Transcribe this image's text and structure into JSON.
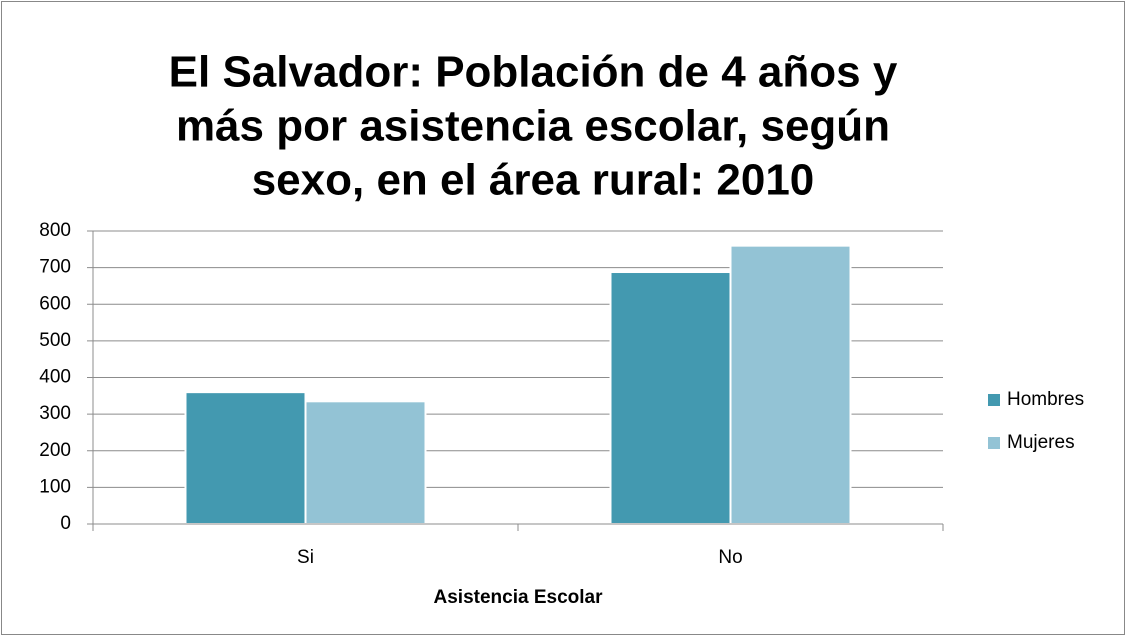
{
  "chart_data": {
    "type": "bar",
    "title": [
      "El Salvador: Población de 4 años y",
      "más por asistencia escolar, según",
      "sexo, en el área rural: 2010"
    ],
    "x_label": "Asistencia Escolar",
    "categories": [
      "Si",
      "No"
    ],
    "series": [
      {
        "name": "Hombres",
        "color": "#4399b0",
        "values": [
          360,
          688
        ]
      },
      {
        "name": "Mujeres",
        "color": "#93c3d5",
        "values": [
          335,
          760
        ]
      }
    ],
    "ylim": [
      0,
      800
    ],
    "yticks": [
      0,
      100,
      200,
      300,
      400,
      500,
      600,
      700,
      800
    ],
    "grid": true,
    "legend": "right"
  }
}
